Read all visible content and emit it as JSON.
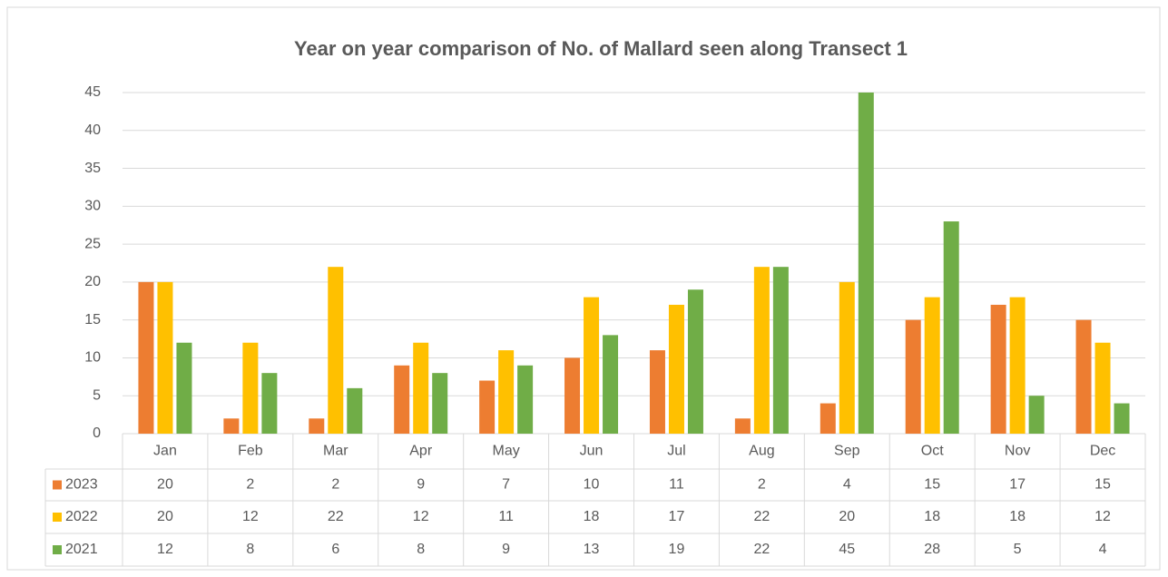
{
  "chart_data": {
    "type": "bar",
    "title": "Year on year comparison of No. of Mallard seen along Transect 1",
    "categories": [
      "Jan",
      "Feb",
      "Mar",
      "Apr",
      "May",
      "Jun",
      "Jul",
      "Aug",
      "Sep",
      "Oct",
      "Nov",
      "Dec"
    ],
    "series": [
      {
        "name": "2023",
        "color": "#ed7d31",
        "values": [
          20,
          2,
          2,
          9,
          7,
          10,
          11,
          2,
          4,
          15,
          17,
          15
        ]
      },
      {
        "name": "2022",
        "color": "#ffc000",
        "values": [
          20,
          12,
          22,
          12,
          11,
          18,
          17,
          22,
          20,
          18,
          18,
          12
        ]
      },
      {
        "name": "2021",
        "color": "#70ad47",
        "values": [
          12,
          8,
          6,
          8,
          9,
          13,
          19,
          22,
          45,
          28,
          5,
          4
        ]
      }
    ],
    "ylim": [
      0,
      45
    ],
    "yticks": [
      0,
      5,
      10,
      15,
      20,
      25,
      30,
      35,
      40,
      45
    ],
    "grid": true
  }
}
